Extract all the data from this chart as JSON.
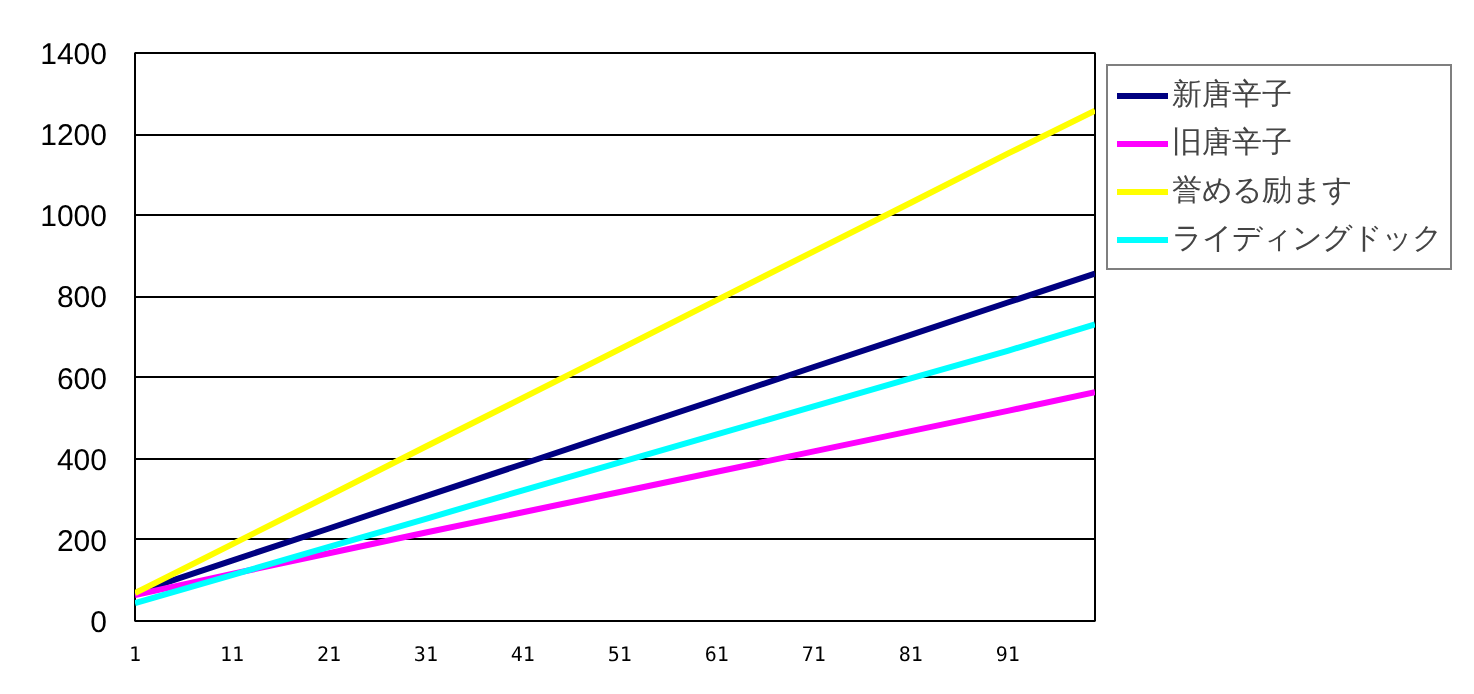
{
  "chart_data": {
    "type": "line",
    "x": [
      1,
      11,
      21,
      31,
      41,
      51,
      61,
      71,
      81,
      91,
      100
    ],
    "xlim": [
      1,
      100
    ],
    "xticks": [
      1,
      11,
      21,
      31,
      41,
      51,
      61,
      71,
      81,
      91
    ],
    "ylim": [
      0,
      1400
    ],
    "yticks": [
      0,
      200,
      400,
      600,
      800,
      1000,
      1200,
      1400
    ],
    "grid": "y",
    "legend": "right",
    "series": [
      {
        "name": "新唐辛子",
        "color": "#000080",
        "values": [
          69,
          149,
          228,
          308,
          387,
          467,
          546,
          626,
          705,
          785,
          856
        ]
      },
      {
        "name": "旧唐辛子",
        "color": "#ff00ff",
        "values": [
          64,
          116,
          167,
          218,
          268,
          318,
          368,
          418,
          468,
          518,
          564
        ]
      },
      {
        "name": "誉める励ます",
        "color": "#ffff00",
        "values": [
          69,
          189,
          309,
          430,
          550,
          670,
          791,
          911,
          1031,
          1152,
          1258
        ]
      },
      {
        "name": "ライディングドック",
        "color": "#00ffff",
        "values": [
          44,
          113,
          183,
          252,
          322,
          391,
          460,
          529,
          598,
          666,
          731
        ]
      }
    ]
  }
}
